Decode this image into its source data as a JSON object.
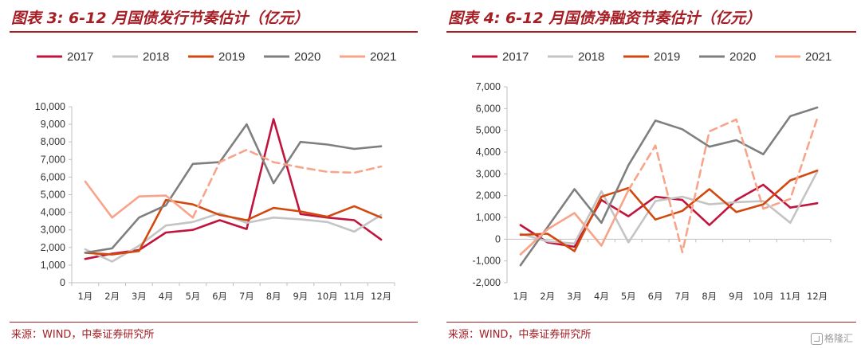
{
  "chart_data": [
    {
      "type": "line",
      "title": "图表 3:  6-12 月国债发行节奏估计（亿元）",
      "source": "来源：WIND，中泰证券研究所",
      "categories": [
        "1月",
        "2月",
        "3月",
        "4月",
        "5月",
        "6月",
        "7月",
        "8月",
        "9月",
        "10月",
        "11月",
        "12月"
      ],
      "ylim": [
        0,
        10000
      ],
      "yticks": [
        "0",
        "1,000",
        "2,000",
        "3,000",
        "4,000",
        "5,000",
        "6,000",
        "7,000",
        "8,000",
        "9,000",
        "10,000"
      ],
      "grid": false,
      "legend": "top",
      "series": [
        {
          "name": "2017",
          "color": "#c0143c",
          "dashed": false,
          "values": [
            1350,
            1650,
            1850,
            2850,
            3000,
            3550,
            3050,
            9300,
            3900,
            3700,
            3550,
            2450
          ]
        },
        {
          "name": "2018",
          "color": "#c4c4c4",
          "dashed": false,
          "values": [
            1900,
            1200,
            2100,
            3250,
            3450,
            3950,
            3400,
            3700,
            3600,
            3450,
            2900,
            3850
          ]
        },
        {
          "name": "2019",
          "color": "#d2490f",
          "dashed": false,
          "values": [
            1700,
            1600,
            1800,
            4700,
            4450,
            3850,
            3550,
            4250,
            4050,
            3750,
            4350,
            3700
          ]
        },
        {
          "name": "2020",
          "color": "#7f7f7f",
          "dashed": false,
          "values": [
            1700,
            1950,
            3700,
            4400,
            6750,
            6850,
            9000,
            5650,
            8000,
            7850,
            7600,
            7750
          ]
        },
        {
          "name": "2021",
          "color": "#f7a48a",
          "dashed": false,
          "values": [
            5750,
            3700,
            4900,
            4950,
            3700,
            null,
            null,
            null,
            null,
            null,
            null,
            null
          ]
        },
        {
          "name": "",
          "color": "#f7a48a",
          "dashed": true,
          "values": [
            null,
            null,
            null,
            null,
            3700,
            6850,
            7550,
            6850,
            6550,
            6300,
            6250,
            6600
          ]
        }
      ]
    },
    {
      "type": "line",
      "title": "图表 4:  6-12 月国债净融资节奏估计（亿元）",
      "source": "来源：WIND，中泰证券研究所",
      "categories": [
        "1月",
        "2月",
        "3月",
        "4月",
        "5月",
        "6月",
        "7月",
        "8月",
        "9月",
        "10月",
        "11月",
        "12月"
      ],
      "ylim": [
        -2000,
        7000
      ],
      "yticks": [
        "-2,000",
        "-1,000",
        "0",
        "1,000",
        "2,000",
        "3,000",
        "4,000",
        "5,000",
        "6,000",
        "7,000"
      ],
      "grid": false,
      "legend": "top",
      "series": [
        {
          "name": "2017",
          "color": "#c0143c",
          "dashed": false,
          "values": [
            650,
            -150,
            -350,
            1800,
            1050,
            1950,
            1800,
            650,
            1800,
            2500,
            1450,
            1650
          ]
        },
        {
          "name": "2018",
          "color": "#c4c4c4",
          "dashed": false,
          "values": [
            250,
            -100,
            -200,
            2200,
            -150,
            1750,
            1950,
            1600,
            1700,
            1750,
            750,
            3100
          ]
        },
        {
          "name": "2019",
          "color": "#d2490f",
          "dashed": false,
          "values": [
            200,
            250,
            -550,
            1950,
            2350,
            900,
            1300,
            2300,
            1250,
            1600,
            2700,
            3150
          ]
        },
        {
          "name": "2020",
          "color": "#7f7f7f",
          "dashed": false,
          "values": [
            -1200,
            550,
            2300,
            750,
            3400,
            5450,
            5050,
            4250,
            4550,
            3900,
            5650,
            6050
          ]
        },
        {
          "name": "2021",
          "color": "#f7a48a",
          "dashed": false,
          "values": [
            -700,
            450,
            1200,
            -300,
            2250,
            null,
            null,
            null,
            null,
            null,
            null,
            null
          ]
        },
        {
          "name": "",
          "color": "#f7a48a",
          "dashed": true,
          "values": [
            null,
            null,
            null,
            null,
            2250,
            4300,
            -600,
            4950,
            5500,
            1400,
            1850,
            5550
          ]
        }
      ]
    }
  ],
  "watermark": "格隆汇"
}
